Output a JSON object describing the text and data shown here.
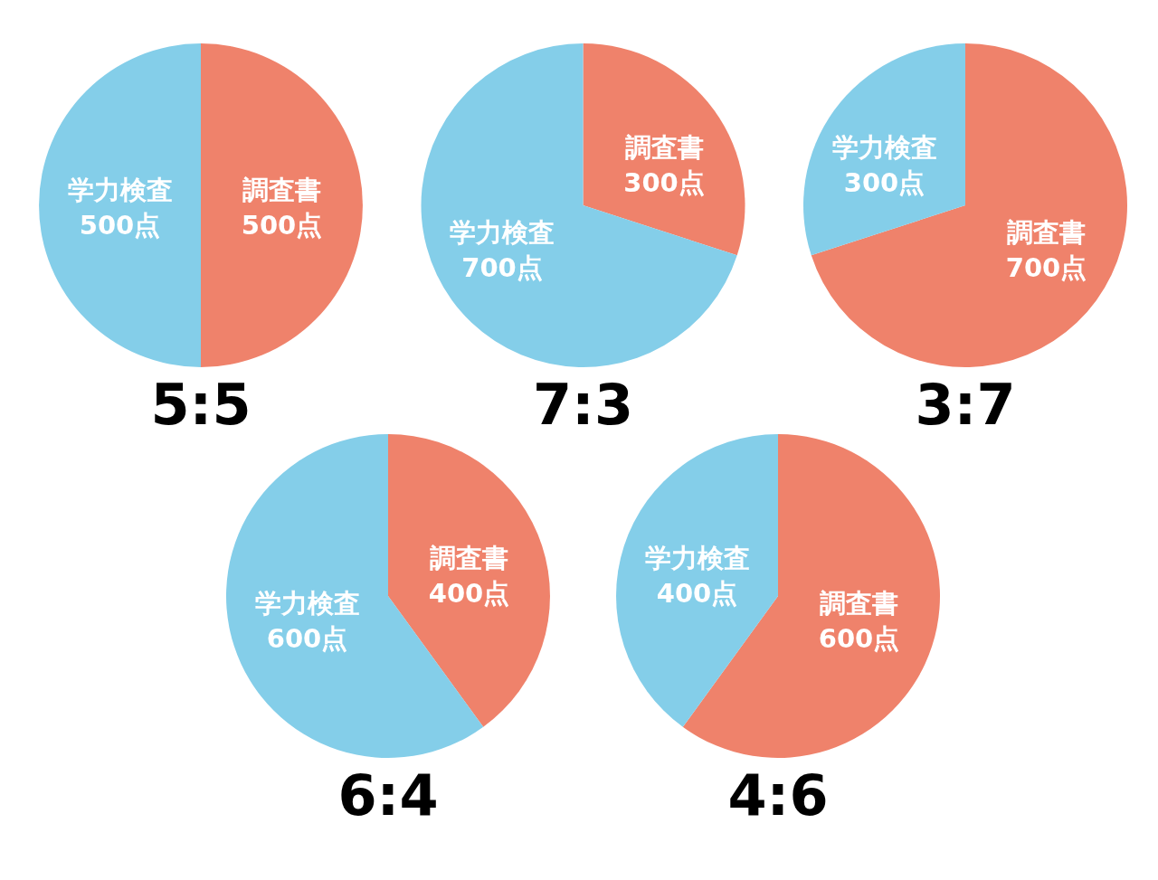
{
  "chart_data": [
    {
      "type": "pie",
      "title": "5:5",
      "categories": [
        "調査書",
        "学力検査"
      ],
      "values": [
        500,
        500
      ],
      "colors": [
        "#ef826b",
        "#84cee9"
      ],
      "value_labels": [
        "500点",
        "500点"
      ]
    },
    {
      "type": "pie",
      "title": "7:3",
      "categories": [
        "調査書",
        "学力検査"
      ],
      "values": [
        300,
        700
      ],
      "colors": [
        "#ef826b",
        "#84cee9"
      ],
      "value_labels": [
        "300点",
        "700点"
      ]
    },
    {
      "type": "pie",
      "title": "3:7",
      "categories": [
        "調査書",
        "学力検査"
      ],
      "values": [
        700,
        300
      ],
      "colors": [
        "#ef826b",
        "#84cee9"
      ],
      "value_labels": [
        "700点",
        "300点"
      ]
    },
    {
      "type": "pie",
      "title": "6:4",
      "categories": [
        "調査書",
        "学力検査"
      ],
      "values": [
        400,
        600
      ],
      "colors": [
        "#ef826b",
        "#84cee9"
      ],
      "value_labels": [
        "400点",
        "600点"
      ]
    },
    {
      "type": "pie",
      "title": "4:6",
      "categories": [
        "調査書",
        "学力検査"
      ],
      "values": [
        600,
        400
      ],
      "colors": [
        "#ef826b",
        "#84cee9"
      ],
      "value_labels": [
        "600点",
        "400点"
      ]
    }
  ]
}
